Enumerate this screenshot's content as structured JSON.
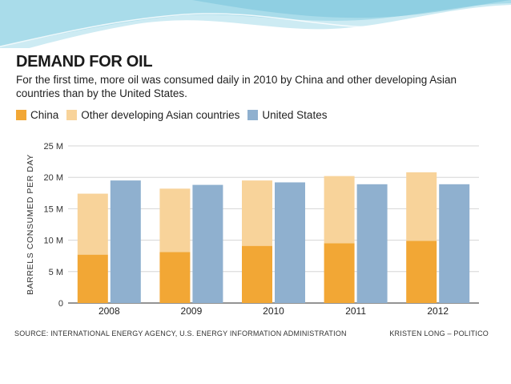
{
  "colors": {
    "china": "#f2a735",
    "other_asia": "#f8d39a",
    "united_states": "#8fb0cf",
    "banner": "#9ed3e3"
  },
  "chart_data": {
    "type": "bar",
    "title": "DEMAND FOR OIL",
    "subtitle": "For the first time, more oil was consumed daily in 2010 by China and other developing Asian countries than by the United States.",
    "xlabel": "",
    "ylabel": "BARRELS CONSUMED PER DAY",
    "ylim": [
      0,
      25
    ],
    "yticks": [
      {
        "value": 0,
        "label": "0"
      },
      {
        "value": 5,
        "label": "5 M"
      },
      {
        "value": 10,
        "label": "10 M"
      },
      {
        "value": 15,
        "label": "15 M"
      },
      {
        "value": 20,
        "label": "20 M"
      },
      {
        "value": 25,
        "label": "25 M"
      }
    ],
    "grid": true,
    "legend_position": "top-left",
    "categories": [
      "2008",
      "2009",
      "2010",
      "2011",
      "2012"
    ],
    "series": [
      {
        "name": "China",
        "stack": "asia",
        "values": [
          7.7,
          8.1,
          9.1,
          9.5,
          9.9
        ]
      },
      {
        "name": "Other developing Asian countries",
        "stack": "asia",
        "values": [
          9.7,
          10.1,
          10.4,
          10.7,
          10.9
        ]
      },
      {
        "name": "United States",
        "stack": "us",
        "values": [
          19.5,
          18.8,
          19.2,
          18.9,
          18.9
        ]
      }
    ],
    "source": "SOURCE: INTERNATIONAL ENERGY AGENCY, U.S. ENERGY INFORMATION ADMINISTRATION",
    "credit": "KRISTEN LONG – POLITICO"
  }
}
